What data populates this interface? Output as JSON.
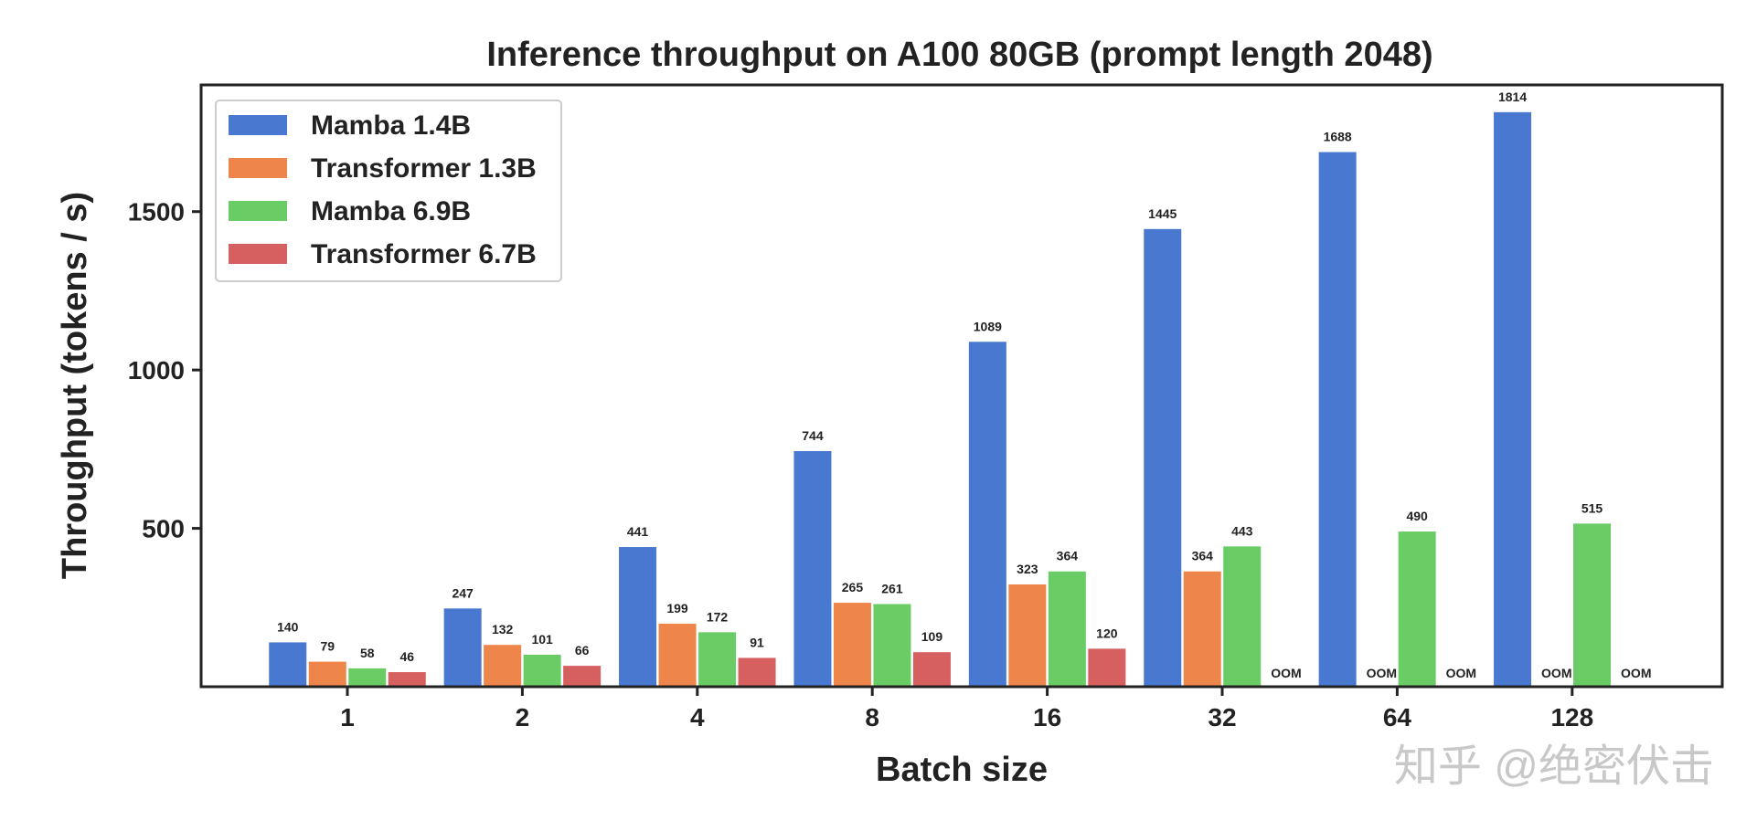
{
  "chart_data": {
    "type": "bar",
    "title": "Inference throughput on A100 80GB (prompt length 2048)",
    "xlabel": "Batch size",
    "ylabel": "Throughput (tokens / s)",
    "categories": [
      "1",
      "2",
      "4",
      "8",
      "16",
      "32",
      "64",
      "128"
    ],
    "ylim": [
      0,
      1900
    ],
    "yticks": [
      500,
      1000,
      1500
    ],
    "legend_position": "top-left",
    "series": [
      {
        "name": "Mamba 1.4B",
        "color": "#4878d0",
        "values": [
          140,
          247,
          441,
          744,
          1089,
          1445,
          1688,
          1814
        ],
        "labels": [
          "140",
          "247",
          "441",
          "744",
          "1089",
          "1445",
          "1688",
          "1814"
        ]
      },
      {
        "name": "Transformer 1.3B",
        "color": "#ee854a",
        "values": [
          79,
          132,
          199,
          265,
          323,
          364,
          null,
          null
        ],
        "labels": [
          "79",
          "132",
          "199",
          "265",
          "323",
          "364",
          "OOM",
          "OOM"
        ]
      },
      {
        "name": "Mamba 6.9B",
        "color": "#6acc64",
        "values": [
          58,
          101,
          172,
          261,
          364,
          443,
          490,
          515
        ],
        "labels": [
          "58",
          "101",
          "172",
          "261",
          "364",
          "443",
          "490",
          "515"
        ]
      },
      {
        "name": "Transformer 6.7B",
        "color": "#d65f5f",
        "values": [
          46,
          66,
          91,
          109,
          120,
          null,
          null,
          null
        ],
        "labels": [
          "46",
          "66",
          "91",
          "109",
          "120",
          "OOM",
          "OOM",
          "OOM"
        ]
      }
    ]
  },
  "watermark": "知乎 @绝密伏击"
}
